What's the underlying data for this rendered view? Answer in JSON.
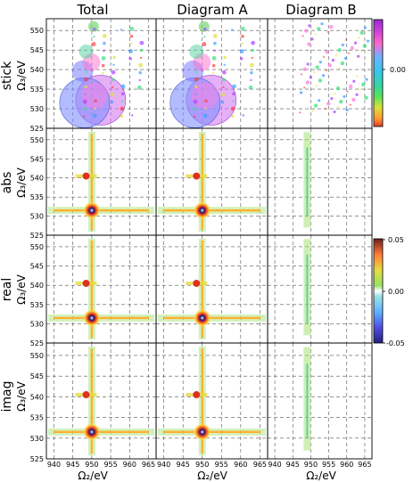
{
  "column_titles": [
    "Total",
    "Diagram A",
    "Diagram B"
  ],
  "row_labels": [
    "stick",
    "abs",
    "real",
    "imag"
  ],
  "y_axis_label": "Ω₃/eV",
  "x_axis_label": "Ω₂/eV",
  "colorbar_stick": {
    "tick": "0.00",
    "colors": [
      "#9b2ad6",
      "#d245d8",
      "#ff66cc",
      "#6fb2ff",
      "#35c7e8",
      "#36d6a0",
      "#59e35a",
      "#d9e23a",
      "#ffa032",
      "#e23c2c"
    ]
  },
  "colorbar_lower": {
    "ticks": [
      "0.05",
      "0.00",
      "-0.05"
    ]
  },
  "chart_data": {
    "type": "heatmap",
    "panels": "4 rows × 3 columns of 2D spectra (stick, abs, real, imag) for Total, Diagram A, Diagram B",
    "xlabel": "Ω₂/eV",
    "ylabel": "Ω₃/eV",
    "xlim": [
      938,
      967
    ],
    "ylim": [
      525,
      553
    ],
    "x_ticks": [
      940,
      945,
      950,
      955,
      960,
      965
    ],
    "y_ticks": [
      525,
      530,
      535,
      540,
      545,
      550
    ],
    "grid": true,
    "main_peaks": [
      {
        "x": 950,
        "y": 531.5
      },
      {
        "x": 948.5,
        "y": 540.5
      }
    ]
  }
}
